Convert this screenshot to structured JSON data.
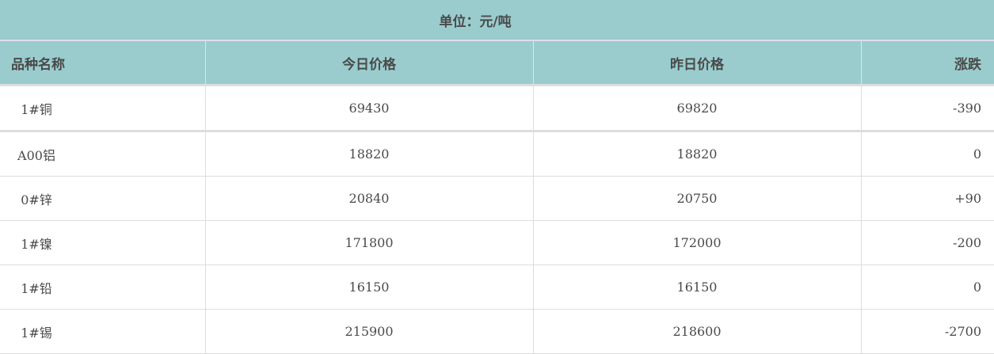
{
  "unit_label": "单位：元/吨",
  "columns": [
    "品种名称",
    "今日价格",
    "昨日价格",
    "涨跌"
  ],
  "rows": [
    {
      "name": "1#铜",
      "today": "69430",
      "yesterday": "69820",
      "change": "-390"
    },
    {
      "name": "A00铝",
      "today": "18820",
      "yesterday": "18820",
      "change": "0"
    },
    {
      "name": "0#锌",
      "today": "20840",
      "yesterday": "20750",
      "change": "+90"
    },
    {
      "name": "1#镍",
      "today": "171800",
      "yesterday": "172000",
      "change": "-200"
    },
    {
      "name": "1#铅",
      "today": "16150",
      "yesterday": "16150",
      "change": "0"
    },
    {
      "name": "1#锡",
      "today": "215900",
      "yesterday": "218600",
      "change": "-2700"
    }
  ],
  "colors": {
    "header_bg": "#9acccd",
    "text": "#4a4a4a",
    "border": "#dddddd"
  }
}
